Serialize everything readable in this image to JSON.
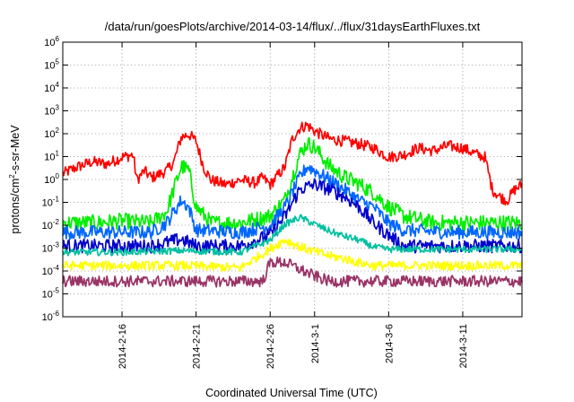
{
  "chart_data": {
    "type": "line",
    "title": "/data/run/goesPlots/archive/2014-03-14/flux/../flux/31daysEarthFluxes.txt",
    "xlabel": "Coordinated Universal Time (UTC)",
    "ylabel_parts": [
      "protons/cm",
      "2",
      "-s-sr-MeV"
    ],
    "x_range": [
      "2014-02-12",
      "2014-03-15"
    ],
    "y_scale": "log",
    "ylim": [
      1e-06,
      1000000.0
    ],
    "y_ticks": [
      {
        "base": "10",
        "exp": "-6",
        "value": 1e-06
      },
      {
        "base": "10",
        "exp": "-5",
        "value": 1e-05
      },
      {
        "base": "10",
        "exp": "-4",
        "value": 0.0001
      },
      {
        "base": "10",
        "exp": "-3",
        "value": 0.001
      },
      {
        "base": "10",
        "exp": "-2",
        "value": 0.01
      },
      {
        "base": "10",
        "exp": "-1",
        "value": 0.1
      },
      {
        "base": "10",
        "exp": "0",
        "value": 1
      },
      {
        "base": "10",
        "exp": "1",
        "value": 10
      },
      {
        "base": "10",
        "exp": "2",
        "value": 100
      },
      {
        "base": "10",
        "exp": "3",
        "value": 1000
      },
      {
        "base": "10",
        "exp": "4",
        "value": 10000
      },
      {
        "base": "10",
        "exp": "5",
        "value": 100000
      },
      {
        "base": "10",
        "exp": "6",
        "value": 1000000
      }
    ],
    "x_ticks": [
      {
        "label": "2014-2-16",
        "date": "2014-02-16"
      },
      {
        "label": "2014-2-21",
        "date": "2014-02-21"
      },
      {
        "label": "2014-2-26",
        "date": "2014-02-26"
      },
      {
        "label": "2014-3-1",
        "date": "2014-03-01"
      },
      {
        "label": "2014-3-6",
        "date": "2014-03-06"
      },
      {
        "label": "2014-3-11",
        "date": "2014-03-11"
      }
    ],
    "grid": true,
    "series": [
      {
        "color": "#ff0000",
        "noise": 0.25,
        "points": [
          [
            "2014-02-12",
            1.5
          ],
          [
            "2014-02-13",
            3
          ],
          [
            "2014-02-14",
            5
          ],
          [
            "2014-02-15",
            4
          ],
          [
            "2014-02-16",
            8
          ],
          [
            "2014-02-16T18:00",
            10
          ],
          [
            "2014-02-17",
            0.8
          ],
          [
            "2014-02-17T12:00",
            2
          ],
          [
            "2014-02-18",
            1
          ],
          [
            "2014-02-19",
            2
          ],
          [
            "2014-02-19T12:00",
            5
          ],
          [
            "2014-02-20",
            60
          ],
          [
            "2014-02-20T12:00",
            80
          ],
          [
            "2014-02-21",
            40
          ],
          [
            "2014-02-21T12:00",
            3
          ],
          [
            "2014-02-22",
            0.8
          ],
          [
            "2014-02-23",
            0.5
          ],
          [
            "2014-02-24",
            0.8
          ],
          [
            "2014-02-25",
            0.6
          ],
          [
            "2014-02-25T12:00",
            1
          ],
          [
            "2014-02-26",
            0.5
          ],
          [
            "2014-02-27",
            3
          ],
          [
            "2014-02-27T12:00",
            50
          ],
          [
            "2014-02-28",
            150
          ],
          [
            "2014-02-28T12:00",
            200
          ],
          [
            "2014-03-01",
            110
          ],
          [
            "2014-03-02",
            50
          ],
          [
            "2014-03-03",
            40
          ],
          [
            "2014-03-04",
            30
          ],
          [
            "2014-03-05",
            20
          ],
          [
            "2014-03-06",
            8
          ],
          [
            "2014-03-07",
            10
          ],
          [
            "2014-03-08",
            20
          ],
          [
            "2014-03-09",
            15
          ],
          [
            "2014-03-10",
            25
          ],
          [
            "2014-03-11",
            20
          ],
          [
            "2014-03-12",
            10
          ],
          [
            "2014-03-12T12:00",
            8
          ],
          [
            "2014-03-13",
            0.3
          ],
          [
            "2014-03-13T12:00",
            0.15
          ],
          [
            "2014-03-14",
            0.1
          ],
          [
            "2014-03-14T12:00",
            0.3
          ],
          [
            "2014-03-15",
            0.5
          ]
        ]
      },
      {
        "color": "#00ee00",
        "noise": 0.35,
        "points": [
          [
            "2014-02-12",
            0.01
          ],
          [
            "2014-02-14",
            0.01
          ],
          [
            "2014-02-16",
            0.012
          ],
          [
            "2014-02-18",
            0.01
          ],
          [
            "2014-02-19",
            0.03
          ],
          [
            "2014-02-19T12:00",
            0.3
          ],
          [
            "2014-02-20",
            3
          ],
          [
            "2014-02-20T12:00",
            2
          ],
          [
            "2014-02-21",
            0.05
          ],
          [
            "2014-02-22",
            0.01
          ],
          [
            "2014-02-24",
            0.01
          ],
          [
            "2014-02-26",
            0.02
          ],
          [
            "2014-02-27",
            0.1
          ],
          [
            "2014-02-27T12:00",
            1
          ],
          [
            "2014-02-28",
            10
          ],
          [
            "2014-02-28T12:00",
            30
          ],
          [
            "2014-03-01",
            20
          ],
          [
            "2014-03-02",
            3
          ],
          [
            "2014-03-03",
            1
          ],
          [
            "2014-03-04",
            0.5
          ],
          [
            "2014-03-05",
            0.2
          ],
          [
            "2014-03-06",
            0.05
          ],
          [
            "2014-03-07",
            0.02
          ],
          [
            "2014-03-09",
            0.01
          ],
          [
            "2014-03-12",
            0.01
          ],
          [
            "2014-03-15",
            0.01
          ]
        ]
      },
      {
        "color": "#0066ff",
        "noise": 0.3,
        "points": [
          [
            "2014-02-12",
            0.004
          ],
          [
            "2014-02-14",
            0.004
          ],
          [
            "2014-02-16",
            0.004
          ],
          [
            "2014-02-18",
            0.004
          ],
          [
            "2014-02-19",
            0.01
          ],
          [
            "2014-02-20",
            0.1
          ],
          [
            "2014-02-20T12:00",
            0.05
          ],
          [
            "2014-02-21",
            0.005
          ],
          [
            "2014-02-24",
            0.004
          ],
          [
            "2014-02-26",
            0.008
          ],
          [
            "2014-02-27",
            0.05
          ],
          [
            "2014-02-28",
            1
          ],
          [
            "2014-02-28T12:00",
            3
          ],
          [
            "2014-03-01",
            2
          ],
          [
            "2014-03-02",
            0.8
          ],
          [
            "2014-03-03",
            0.3
          ],
          [
            "2014-03-04",
            0.1
          ],
          [
            "2014-03-05",
            0.05
          ],
          [
            "2014-03-06",
            0.01
          ],
          [
            "2014-03-07",
            0.005
          ],
          [
            "2014-03-10",
            0.004
          ],
          [
            "2014-03-15",
            0.004
          ]
        ]
      },
      {
        "color": "#0000cc",
        "noise": 0.3,
        "points": [
          [
            "2014-02-12",
            0.001
          ],
          [
            "2014-02-14",
            0.001
          ],
          [
            "2014-02-16",
            0.001
          ],
          [
            "2014-02-18",
            0.001
          ],
          [
            "2014-02-20",
            0.002
          ],
          [
            "2014-02-21",
            0.001
          ],
          [
            "2014-02-24",
            0.001
          ],
          [
            "2014-02-26",
            0.003
          ],
          [
            "2014-02-27",
            0.02
          ],
          [
            "2014-02-28",
            0.3
          ],
          [
            "2014-03-01",
            0.5
          ],
          [
            "2014-03-02",
            0.3
          ],
          [
            "2014-03-03",
            0.15
          ],
          [
            "2014-03-04",
            0.05
          ],
          [
            "2014-03-05",
            0.01
          ],
          [
            "2014-03-06",
            0.003
          ],
          [
            "2014-03-07",
            0.001
          ],
          [
            "2014-03-15",
            0.001
          ]
        ]
      },
      {
        "color": "#00c0a0",
        "noise": 0.15,
        "points": [
          [
            "2014-02-12",
            0.0006
          ],
          [
            "2014-02-16",
            0.0006
          ],
          [
            "2014-02-20",
            0.0007
          ],
          [
            "2014-02-24",
            0.0006
          ],
          [
            "2014-02-26",
            0.002
          ],
          [
            "2014-02-27",
            0.01
          ],
          [
            "2014-02-28",
            0.02
          ],
          [
            "2014-03-01",
            0.01
          ],
          [
            "2014-03-02",
            0.005
          ],
          [
            "2014-03-03",
            0.003
          ],
          [
            "2014-03-04",
            0.002
          ],
          [
            "2014-03-05",
            0.001
          ],
          [
            "2014-03-06",
            0.0008
          ],
          [
            "2014-03-15",
            0.0008
          ]
        ]
      },
      {
        "color": "#ffff00",
        "noise": 0.2,
        "points": [
          [
            "2014-02-12",
            0.00015
          ],
          [
            "2014-02-16",
            0.00015
          ],
          [
            "2014-02-20",
            0.00015
          ],
          [
            "2014-02-24",
            0.00012
          ],
          [
            "2014-02-26",
            0.0008
          ],
          [
            "2014-02-27",
            0.002
          ],
          [
            "2014-02-28",
            0.001
          ],
          [
            "2014-03-01",
            0.0006
          ],
          [
            "2014-03-02",
            0.0004
          ],
          [
            "2014-03-03",
            0.0003
          ],
          [
            "2014-03-04",
            0.0002
          ],
          [
            "2014-03-05",
            0.00015
          ],
          [
            "2014-03-15",
            0.00015
          ]
        ]
      },
      {
        "color": "#993366",
        "noise": 0.25,
        "points": [
          [
            "2014-02-12",
            3e-05
          ],
          [
            "2014-02-16",
            3e-05
          ],
          [
            "2014-02-20",
            3e-05
          ],
          [
            "2014-02-24",
            3e-05
          ],
          [
            "2014-02-25T12:00",
            3e-05
          ],
          [
            "2014-02-26",
            0.0002
          ],
          [
            "2014-02-27",
            0.0002
          ],
          [
            "2014-02-28",
            0.0001
          ],
          [
            "2014-03-01",
            5e-05
          ],
          [
            "2014-03-02",
            3e-05
          ],
          [
            "2014-03-15",
            3e-05
          ]
        ]
      }
    ]
  }
}
